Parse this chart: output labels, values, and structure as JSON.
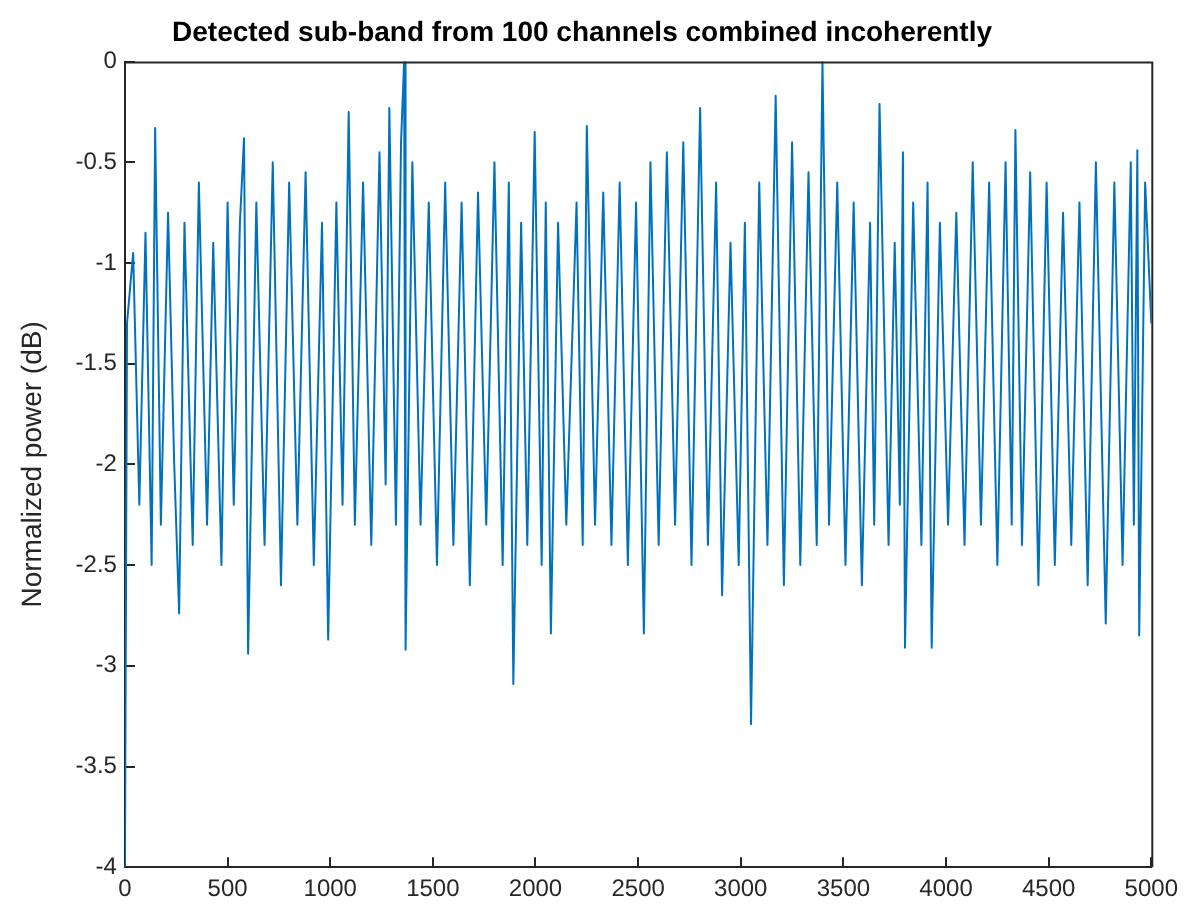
{
  "chart_data": {
    "type": "line",
    "title": "Detected sub-band from 100 channels combined incoherently",
    "ylabel": "Normalized power (dB)",
    "color": "#0072bd",
    "marker": "none",
    "x": [
      0,
      10,
      40,
      70,
      100,
      130,
      147,
      175,
      210,
      240,
      264,
      290,
      330,
      360,
      400,
      430,
      470,
      500,
      530,
      560,
      580,
      600,
      640,
      680,
      720,
      760,
      800,
      840,
      880,
      920,
      960,
      990,
      1030,
      1060,
      1090,
      1120,
      1160,
      1200,
      1240,
      1270,
      1288,
      1320,
      1345,
      1360,
      1367,
      1400,
      1440,
      1480,
      1520,
      1560,
      1600,
      1640,
      1680,
      1720,
      1760,
      1800,
      1840,
      1870,
      1892,
      1930,
      1960,
      1996,
      2030,
      2050,
      2075,
      2110,
      2150,
      2200,
      2230,
      2250,
      2290,
      2330,
      2370,
      2410,
      2450,
      2490,
      2528,
      2560,
      2600,
      2640,
      2680,
      2720,
      2760,
      2802,
      2840,
      2880,
      2909,
      2950,
      2990,
      3020,
      3050,
      3090,
      3130,
      3170,
      3210,
      3250,
      3290,
      3330,
      3370,
      3398,
      3430,
      3470,
      3510,
      3550,
      3590,
      3630,
      3650,
      3676,
      3720,
      3750,
      3775,
      3790,
      3800,
      3840,
      3880,
      3910,
      3930,
      3970,
      4010,
      4050,
      4090,
      4130,
      4170,
      4210,
      4250,
      4290,
      4320,
      4338,
      4370,
      4410,
      4450,
      4490,
      4530,
      4570,
      4610,
      4650,
      4690,
      4730,
      4778,
      4820,
      4860,
      4900,
      4915,
      4932,
      4941,
      4970,
      5000
    ],
    "values": [
      -4,
      -1.3,
      -0.95,
      -2.2,
      -0.85,
      -2.5,
      -0.33,
      -2.3,
      -0.75,
      -2.0,
      -2.74,
      -0.8,
      -2.4,
      -0.6,
      -2.3,
      -0.9,
      -2.5,
      -0.7,
      -2.2,
      -0.8,
      -0.38,
      -2.94,
      -0.7,
      -2.4,
      -0.5,
      -2.6,
      -0.6,
      -2.3,
      -0.55,
      -2.5,
      -0.8,
      -2.87,
      -0.7,
      -2.2,
      -0.25,
      -2.3,
      -0.6,
      -2.4,
      -0.45,
      -2.1,
      -0.23,
      -2.3,
      -0.4,
      0,
      -2.92,
      -0.5,
      -2.3,
      -0.7,
      -2.5,
      -0.6,
      -2.4,
      -0.7,
      -2.6,
      -0.65,
      -2.3,
      -0.5,
      -2.5,
      -0.6,
      -3.09,
      -0.8,
      -2.4,
      -0.35,
      -2.5,
      -0.7,
      -2.84,
      -0.8,
      -2.3,
      -0.7,
      -2.4,
      -0.32,
      -2.3,
      -0.65,
      -2.4,
      -0.6,
      -2.5,
      -0.7,
      -2.84,
      -0.5,
      -2.4,
      -0.45,
      -2.3,
      -0.4,
      -2.5,
      -0.23,
      -2.4,
      -0.6,
      -2.65,
      -0.9,
      -2.5,
      -0.8,
      -3.29,
      -0.6,
      -2.4,
      -0.17,
      -2.6,
      -0.4,
      -2.5,
      -0.55,
      -2.4,
      0,
      -2.3,
      -0.6,
      -2.5,
      -0.7,
      -2.6,
      -0.8,
      -2.3,
      -0.21,
      -2.4,
      -0.9,
      -2.2,
      -0.45,
      -2.91,
      -0.7,
      -2.4,
      -0.6,
      -2.91,
      -0.8,
      -2.3,
      -0.75,
      -2.4,
      -0.5,
      -2.3,
      -0.6,
      -2.5,
      -0.5,
      -2.3,
      -0.34,
      -2.4,
      -0.55,
      -2.6,
      -0.6,
      -2.5,
      -0.75,
      -2.4,
      -0.7,
      -2.6,
      -0.5,
      -2.79,
      -0.6,
      -2.5,
      -0.5,
      -2.3,
      -0.44,
      -2.85,
      -0.6,
      -1.3
    ],
    "xlim": [
      0,
      5000
    ],
    "ylim": [
      -4,
      0
    ],
    "xticks": [
      0,
      500,
      1000,
      1500,
      2000,
      2500,
      3000,
      3500,
      4000,
      4500,
      5000
    ],
    "yticks": [
      -4,
      -3.5,
      -3,
      -2.5,
      -2,
      -1.5,
      -1,
      -0.5,
      0
    ]
  }
}
